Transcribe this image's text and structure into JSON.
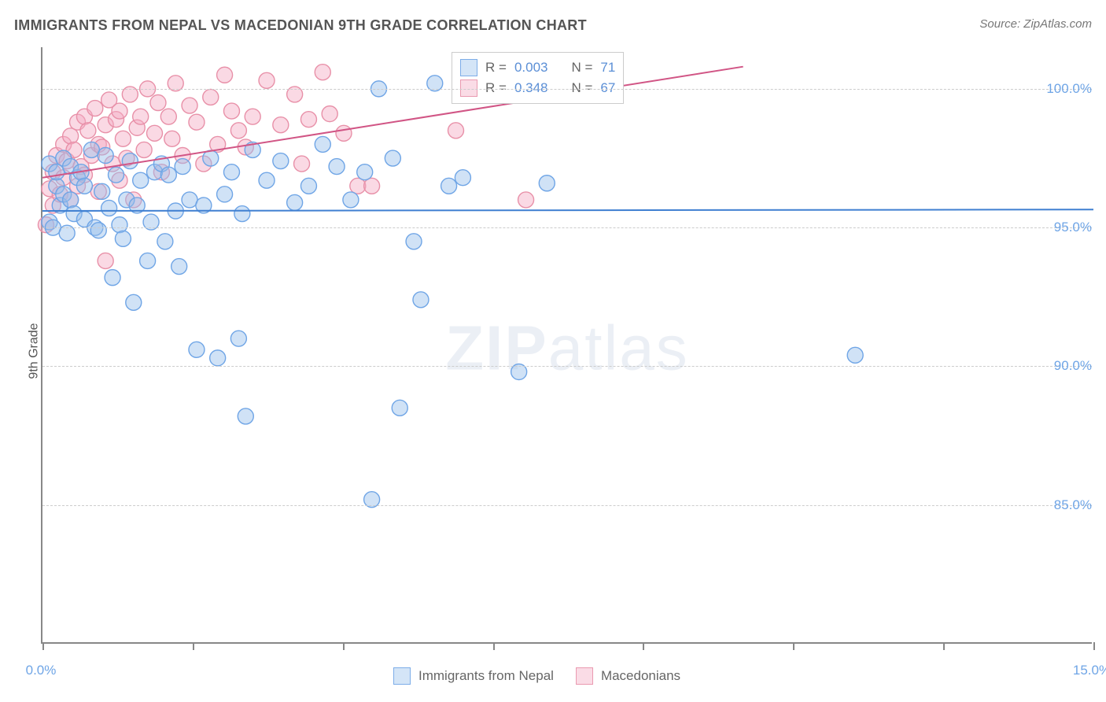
{
  "title": "IMMIGRANTS FROM NEPAL VS MACEDONIAN 9TH GRADE CORRELATION CHART",
  "source_label": "Source:",
  "source_name": "ZipAtlas.com",
  "ylabel": "9th Grade",
  "watermark_bold": "ZIP",
  "watermark_light": "atlas",
  "chart": {
    "type": "scatter",
    "xlim": [
      0.0,
      15.0
    ],
    "ylim": [
      80.0,
      101.5
    ],
    "x_tick_positions": [
      0.0,
      2.143,
      4.286,
      6.429,
      8.571,
      10.714,
      12.857,
      15.0
    ],
    "x_tick_labels_shown": {
      "0": "0.0%",
      "15": "15.0%"
    },
    "y_ticks": [
      85.0,
      90.0,
      95.0,
      100.0
    ],
    "y_tick_labels": [
      "85.0%",
      "90.0%",
      "95.0%",
      "100.0%"
    ],
    "grid_color": "#cccccc",
    "axis_color": "#888888",
    "tick_label_color": "#6fa5e6",
    "background_color": "#ffffff",
    "marker_radius": 10,
    "series": [
      {
        "name": "Immigrants from Nepal",
        "stroke": "#6fa5e6",
        "fill": "rgba(150,190,235,0.45)",
        "trend_stroke": "#3f7fd1",
        "trend_width": 2,
        "trend": {
          "x1": 0.0,
          "y1": 95.6,
          "x2": 15.0,
          "y2": 95.65
        },
        "R": "0.003",
        "N": "71",
        "points": [
          [
            0.1,
            95.2
          ],
          [
            0.1,
            97.3
          ],
          [
            0.15,
            95.0
          ],
          [
            0.2,
            96.5
          ],
          [
            0.2,
            97.0
          ],
          [
            0.25,
            95.8
          ],
          [
            0.3,
            96.2
          ],
          [
            0.3,
            97.5
          ],
          [
            0.35,
            94.8
          ],
          [
            0.4,
            96.0
          ],
          [
            0.4,
            97.2
          ],
          [
            0.45,
            95.5
          ],
          [
            0.5,
            96.8
          ],
          [
            0.55,
            97.0
          ],
          [
            0.6,
            95.3
          ],
          [
            0.6,
            96.5
          ],
          [
            0.7,
            97.8
          ],
          [
            0.75,
            95.0
          ],
          [
            0.8,
            94.9
          ],
          [
            0.85,
            96.3
          ],
          [
            0.9,
            97.6
          ],
          [
            0.95,
            95.7
          ],
          [
            1.0,
            93.2
          ],
          [
            1.05,
            96.9
          ],
          [
            1.1,
            95.1
          ],
          [
            1.15,
            94.6
          ],
          [
            1.2,
            96.0
          ],
          [
            1.25,
            97.4
          ],
          [
            1.3,
            92.3
          ],
          [
            1.35,
            95.8
          ],
          [
            1.4,
            96.7
          ],
          [
            1.5,
            93.8
          ],
          [
            1.55,
            95.2
          ],
          [
            1.6,
            97.0
          ],
          [
            1.7,
            97.3
          ],
          [
            1.75,
            94.5
          ],
          [
            1.8,
            96.9
          ],
          [
            1.9,
            95.6
          ],
          [
            1.95,
            93.6
          ],
          [
            2.0,
            97.2
          ],
          [
            2.1,
            96.0
          ],
          [
            2.2,
            90.6
          ],
          [
            2.3,
            95.8
          ],
          [
            2.4,
            97.5
          ],
          [
            2.5,
            90.3
          ],
          [
            2.6,
            96.2
          ],
          [
            2.7,
            97.0
          ],
          [
            2.8,
            91.0
          ],
          [
            2.85,
            95.5
          ],
          [
            2.9,
            88.2
          ],
          [
            3.0,
            97.8
          ],
          [
            3.2,
            96.7
          ],
          [
            3.4,
            97.4
          ],
          [
            3.6,
            95.9
          ],
          [
            3.8,
            96.5
          ],
          [
            4.0,
            98.0
          ],
          [
            4.2,
            97.2
          ],
          [
            4.4,
            96.0
          ],
          [
            4.6,
            97.0
          ],
          [
            4.7,
            85.2
          ],
          [
            4.8,
            100.0
          ],
          [
            5.0,
            97.5
          ],
          [
            5.1,
            88.5
          ],
          [
            5.3,
            94.5
          ],
          [
            5.4,
            92.4
          ],
          [
            5.6,
            100.2
          ],
          [
            5.8,
            96.5
          ],
          [
            6.0,
            96.8
          ],
          [
            6.8,
            89.8
          ],
          [
            7.2,
            96.6
          ],
          [
            11.6,
            90.4
          ]
        ]
      },
      {
        "name": "Macedonians",
        "stroke": "#e890a8",
        "fill": "rgba(245,170,195,0.45)",
        "trend_stroke": "#d15585",
        "trend_width": 2,
        "trend": {
          "x1": 0.0,
          "y1": 96.8,
          "x2": 10.0,
          "y2": 100.8
        },
        "R": "0.348",
        "N": "67",
        "points": [
          [
            0.05,
            95.1
          ],
          [
            0.1,
            96.4
          ],
          [
            0.15,
            97.0
          ],
          [
            0.15,
            95.8
          ],
          [
            0.2,
            97.6
          ],
          [
            0.25,
            96.2
          ],
          [
            0.3,
            98.0
          ],
          [
            0.3,
            96.8
          ],
          [
            0.35,
            97.4
          ],
          [
            0.4,
            96.0
          ],
          [
            0.4,
            98.3
          ],
          [
            0.45,
            97.8
          ],
          [
            0.5,
            96.5
          ],
          [
            0.5,
            98.8
          ],
          [
            0.55,
            97.2
          ],
          [
            0.6,
            99.0
          ],
          [
            0.6,
            96.9
          ],
          [
            0.65,
            98.5
          ],
          [
            0.7,
            97.6
          ],
          [
            0.75,
            99.3
          ],
          [
            0.8,
            96.3
          ],
          [
            0.8,
            98.0
          ],
          [
            0.85,
            97.9
          ],
          [
            0.9,
            98.7
          ],
          [
            0.9,
            93.8
          ],
          [
            0.95,
            99.6
          ],
          [
            1.0,
            97.3
          ],
          [
            1.05,
            98.9
          ],
          [
            1.1,
            96.7
          ],
          [
            1.1,
            99.2
          ],
          [
            1.15,
            98.2
          ],
          [
            1.2,
            97.5
          ],
          [
            1.25,
            99.8
          ],
          [
            1.3,
            96.0
          ],
          [
            1.35,
            98.6
          ],
          [
            1.4,
            99.0
          ],
          [
            1.45,
            97.8
          ],
          [
            1.5,
            100.0
          ],
          [
            1.6,
            98.4
          ],
          [
            1.65,
            99.5
          ],
          [
            1.7,
            97.0
          ],
          [
            1.8,
            99.0
          ],
          [
            1.85,
            98.2
          ],
          [
            1.9,
            100.2
          ],
          [
            2.0,
            97.6
          ],
          [
            2.1,
            99.4
          ],
          [
            2.2,
            98.8
          ],
          [
            2.3,
            97.3
          ],
          [
            2.4,
            99.7
          ],
          [
            2.5,
            98.0
          ],
          [
            2.6,
            100.5
          ],
          [
            2.7,
            99.2
          ],
          [
            2.8,
            98.5
          ],
          [
            2.9,
            97.9
          ],
          [
            3.0,
            99.0
          ],
          [
            3.2,
            100.3
          ],
          [
            3.4,
            98.7
          ],
          [
            3.6,
            99.8
          ],
          [
            3.7,
            97.3
          ],
          [
            3.8,
            98.9
          ],
          [
            4.0,
            100.6
          ],
          [
            4.1,
            99.1
          ],
          [
            4.3,
            98.4
          ],
          [
            4.5,
            96.5
          ],
          [
            4.7,
            96.5
          ],
          [
            5.9,
            98.5
          ],
          [
            6.9,
            96.0
          ]
        ]
      }
    ]
  },
  "stats_legend": {
    "R_label": "R =",
    "N_label": "N ="
  },
  "bottom_legend": {
    "items": [
      "Immigrants from Nepal",
      "Macedonians"
    ]
  }
}
